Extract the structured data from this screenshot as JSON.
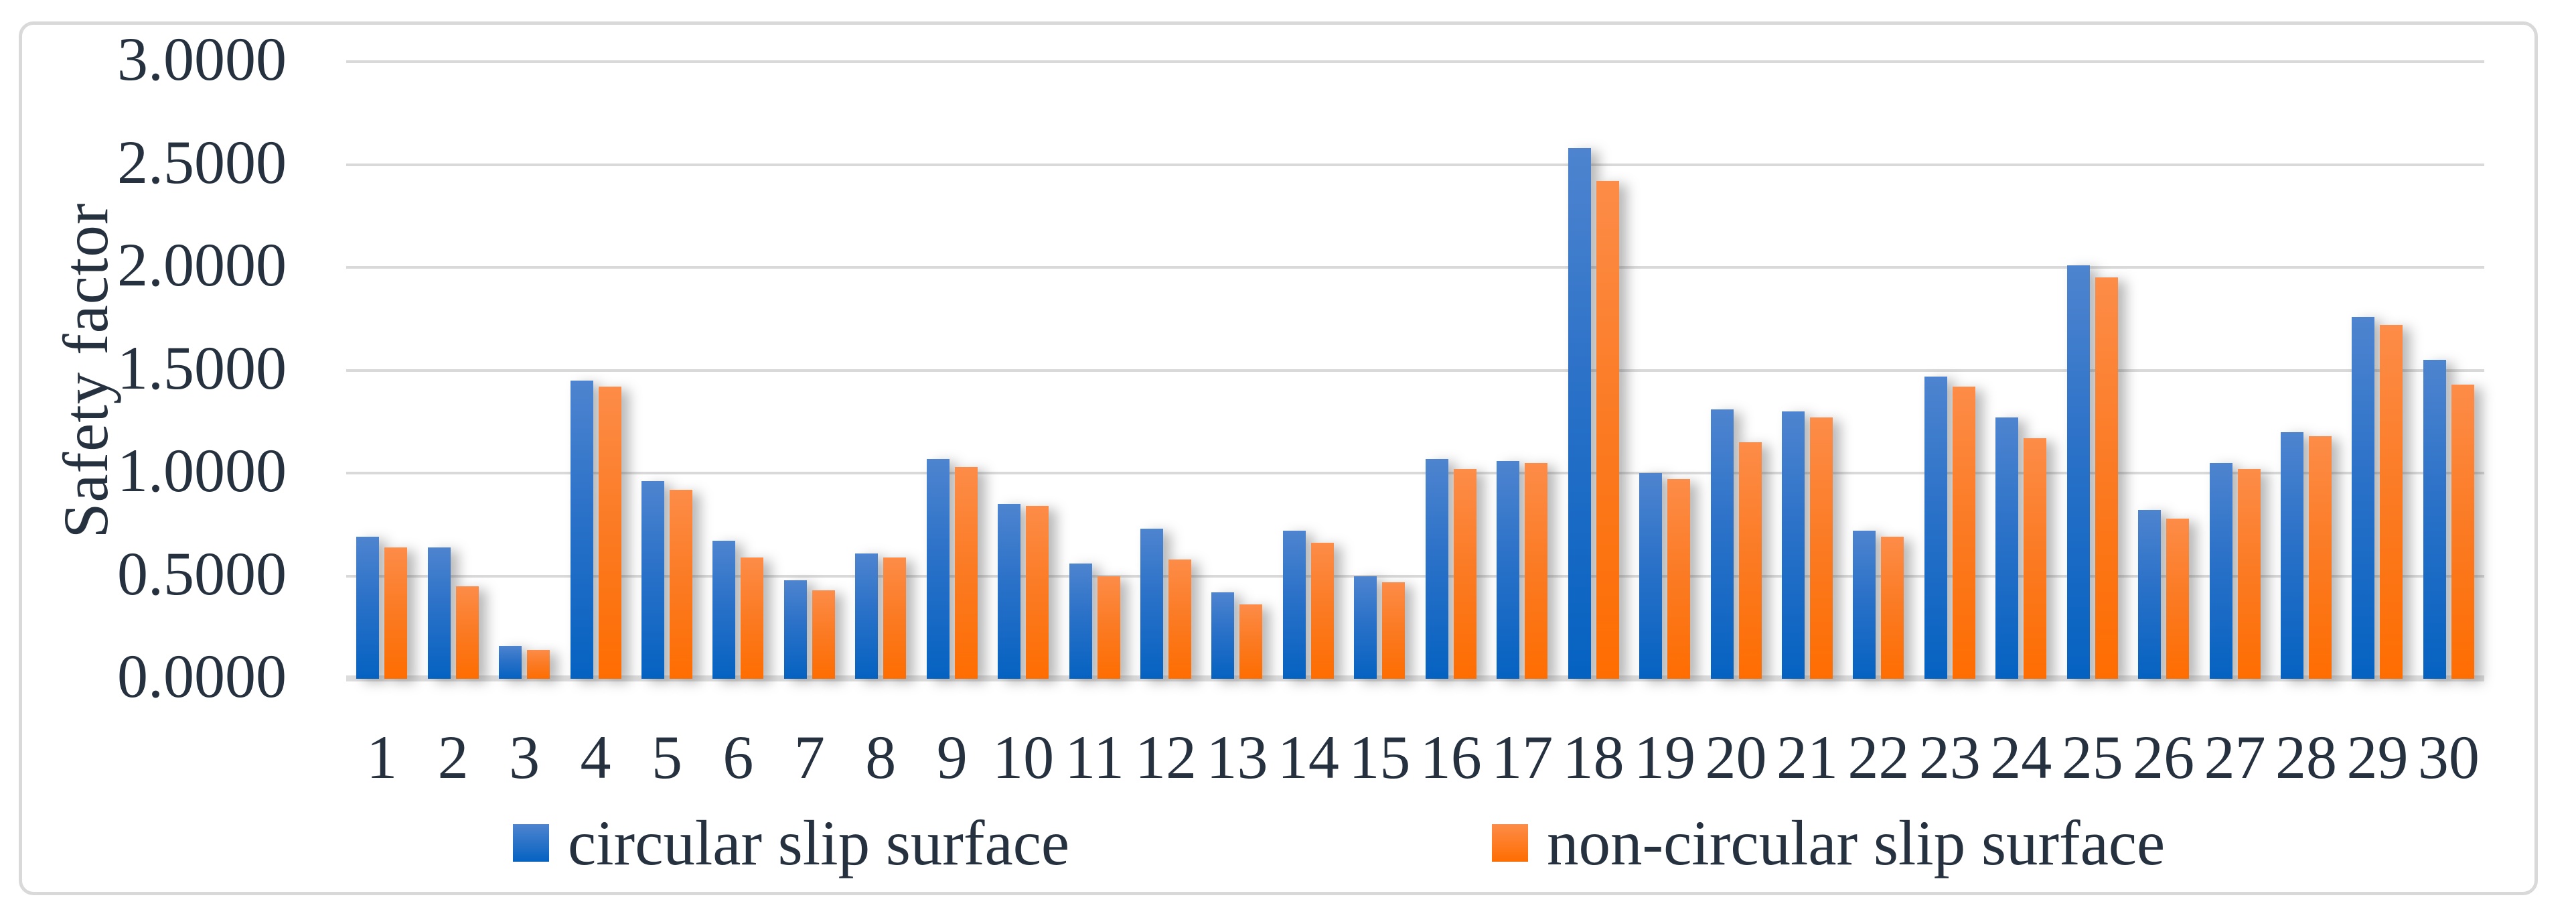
{
  "chart_data": {
    "type": "bar",
    "title": "",
    "ylabel": "Safety factor",
    "xlabel": "",
    "ylim": [
      0,
      3
    ],
    "grid": "horizontal",
    "legend_position": "bottom",
    "gridline_color": "#d9d9d9",
    "text_color": "#26313f",
    "frame_border_color": "#d9d9d9",
    "categories": [
      "1",
      "2",
      "3",
      "4",
      "5",
      "6",
      "7",
      "8",
      "9",
      "10",
      "11",
      "12",
      "13",
      "14",
      "15",
      "16",
      "17",
      "18",
      "19",
      "20",
      "21",
      "22",
      "23",
      "24",
      "25",
      "26",
      "27",
      "28",
      "29",
      "30"
    ],
    "yticks": [
      {
        "value": 3.0,
        "label": "3.0000"
      },
      {
        "value": 2.5,
        "label": "2.5000"
      },
      {
        "value": 2.0,
        "label": "2.0000"
      },
      {
        "value": 1.5,
        "label": "1.5000"
      },
      {
        "value": 1.0,
        "label": "1.0000"
      },
      {
        "value": 0.5,
        "label": "0.5000"
      },
      {
        "value": 0.0,
        "label": "0.0000"
      }
    ],
    "series": [
      {
        "name": "circular slip surface",
        "color_top": "#4e84cf",
        "color_bottom": "#0562c1",
        "values": [
          0.69,
          0.64,
          0.16,
          1.45,
          0.96,
          0.67,
          0.48,
          0.61,
          1.07,
          0.85,
          0.56,
          0.73,
          0.42,
          0.72,
          0.5,
          1.07,
          1.06,
          2.58,
          1.0,
          1.31,
          1.3,
          0.72,
          1.47,
          1.27,
          2.01,
          0.82,
          1.05,
          1.2,
          1.76,
          1.55
        ]
      },
      {
        "name": "non-circular slip surface",
        "color_top": "#fd8c48",
        "color_bottom": "#fe6d01",
        "values": [
          0.64,
          0.45,
          0.14,
          1.42,
          0.92,
          0.59,
          0.43,
          0.59,
          1.03,
          0.84,
          0.5,
          0.58,
          0.36,
          0.66,
          0.47,
          1.02,
          1.05,
          2.42,
          0.97,
          1.15,
          1.27,
          0.69,
          1.42,
          1.17,
          1.95,
          0.78,
          1.02,
          1.18,
          1.72,
          1.43
        ]
      }
    ]
  }
}
